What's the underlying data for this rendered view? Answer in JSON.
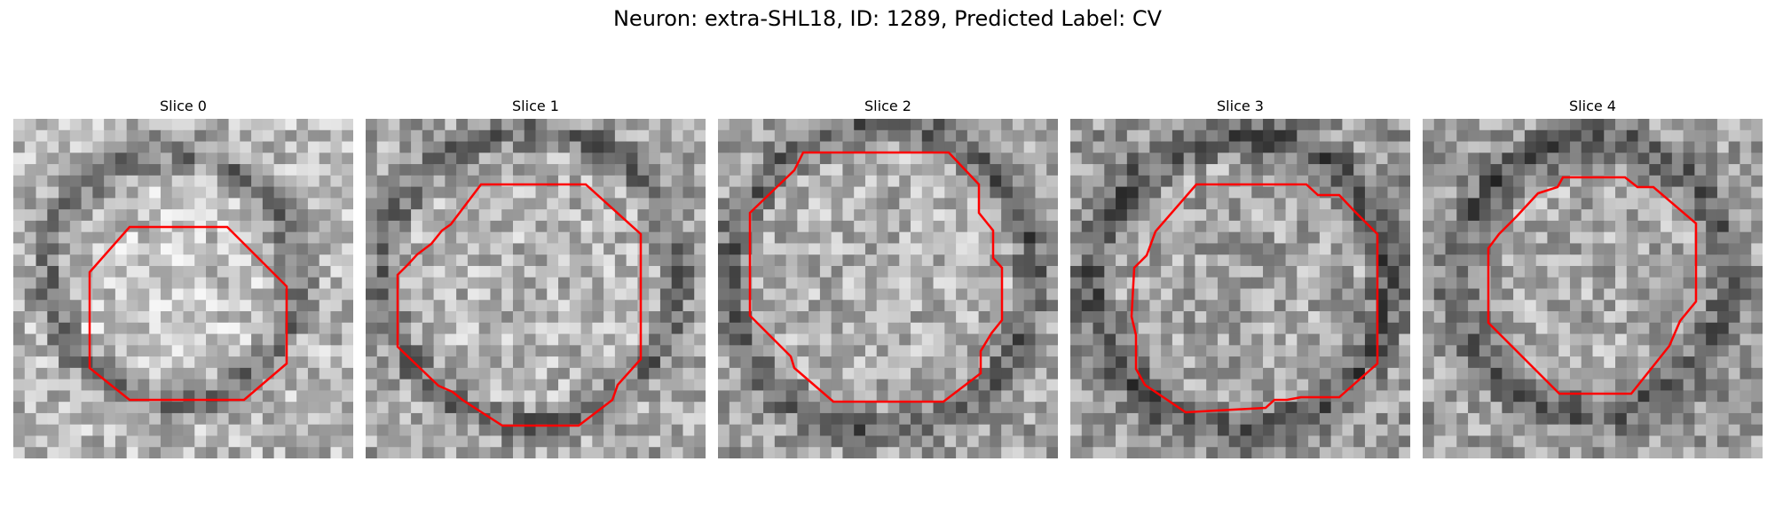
{
  "figure": {
    "title": "Neuron: extra-SHL18, ID: 1289, Predicted Label: CV"
  },
  "panels": [
    {
      "title": "Slice 0"
    },
    {
      "title": "Slice 1"
    },
    {
      "title": "Slice 2"
    },
    {
      "title": "Slice 3"
    },
    {
      "title": "Slice 4"
    }
  ],
  "contour_color": "#ff0000",
  "colormap": "gray"
}
